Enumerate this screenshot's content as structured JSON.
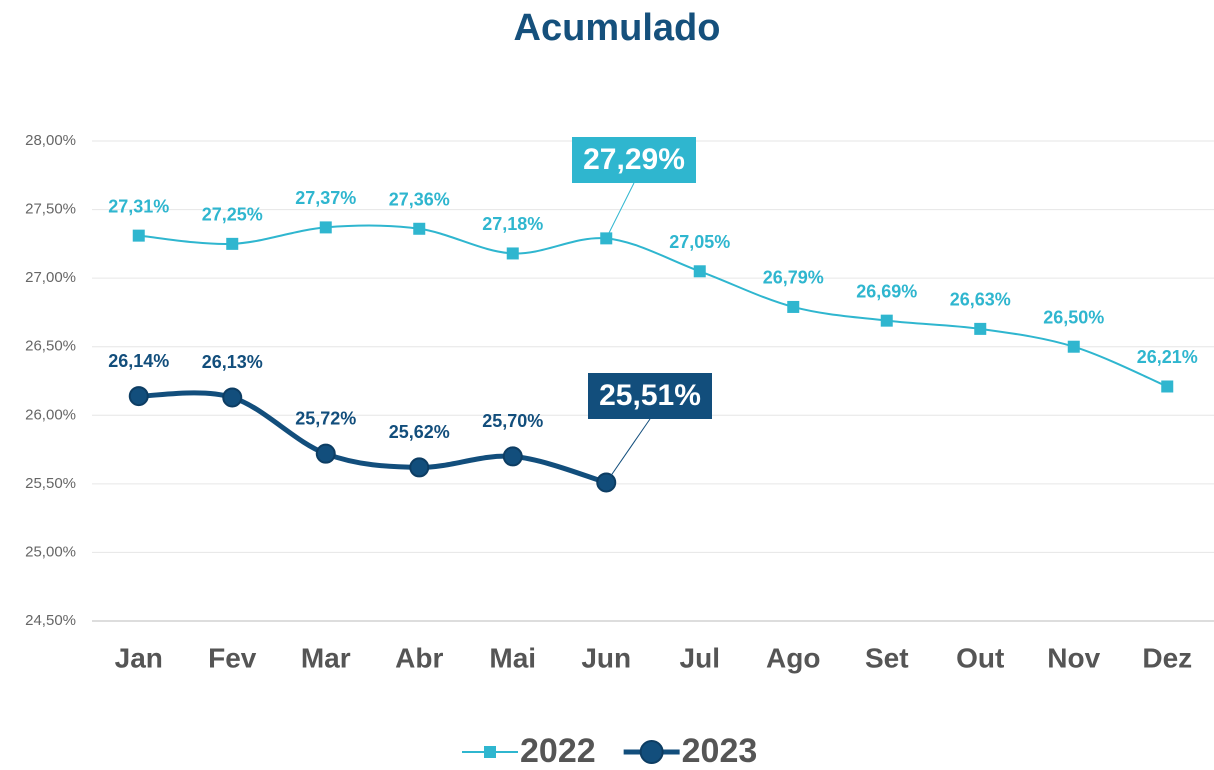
{
  "chart_data": {
    "type": "line",
    "title": "Acumulado",
    "categories": [
      "Jan",
      "Fev",
      "Mar",
      "Abr",
      "Mai",
      "Jun",
      "Jul",
      "Ago",
      "Set",
      "Out",
      "Nov",
      "Dez"
    ],
    "ylim": [
      24.5,
      28
    ],
    "yticks": [
      {
        "value": 24.5,
        "label": "24,50%"
      },
      {
        "value": 25,
        "label": "25,00%"
      },
      {
        "value": 25.5,
        "label": "25,50%"
      },
      {
        "value": 26,
        "label": "26,00%"
      },
      {
        "value": 26.5,
        "label": "26,50%"
      },
      {
        "value": 27,
        "label": "27,00%"
      },
      {
        "value": 27.5,
        "label": "27,50%"
      },
      {
        "value": 28,
        "label": "28,00%"
      }
    ],
    "grid": true,
    "legend": "bottom",
    "series": [
      {
        "name": "2022",
        "color": "#2fb6cf",
        "marker": "square",
        "values": [
          27.31,
          27.25,
          27.37,
          27.36,
          27.18,
          27.29,
          27.05,
          26.79,
          26.69,
          26.63,
          26.5,
          26.21
        ],
        "value_labels": [
          "27,31%",
          "27,25%",
          "27,37%",
          "27,36%",
          "27,18%",
          "27,29%",
          "27,05%",
          "26,79%",
          "26,69%",
          "26,63%",
          "26,50%",
          "26,21%"
        ]
      },
      {
        "name": "2023",
        "color": "#124e7c",
        "marker": "circle",
        "values": [
          26.14,
          26.13,
          25.72,
          25.62,
          25.7,
          25.51,
          null,
          null,
          null,
          null,
          null,
          null
        ],
        "value_labels": [
          "26,14%",
          "26,13%",
          "25,72%",
          "25,62%",
          "25,70%",
          "25,51%",
          null,
          null,
          null,
          null,
          null,
          null
        ]
      }
    ]
  }
}
